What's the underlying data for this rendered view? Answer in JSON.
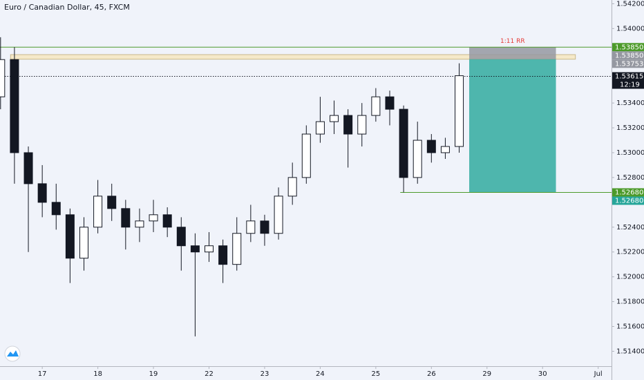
{
  "chart_data": {
    "type": "candlestick",
    "title": "Euro / Canadian Dollar, 45, FXCM",
    "xlim": [
      -0.76,
      10.24
    ],
    "ylim": [
      1.5128,
      1.5423
    ],
    "grid": false,
    "up_color": "#ffffff",
    "down_color": "#131722",
    "xticks": [
      {
        "value": 0,
        "label": "17"
      },
      {
        "value": 1,
        "label": "18"
      },
      {
        "value": 2,
        "label": "19"
      },
      {
        "value": 3,
        "label": "22"
      },
      {
        "value": 4,
        "label": "23"
      },
      {
        "value": 5,
        "label": "24"
      },
      {
        "value": 6,
        "label": "25"
      },
      {
        "value": 7,
        "label": "26"
      },
      {
        "value": 8,
        "label": "29"
      },
      {
        "value": 9,
        "label": "30"
      },
      {
        "value": 10,
        "label": "Jul"
      }
    ],
    "yticks": [
      {
        "value": 1.542,
        "label": "1.54200"
      },
      {
        "value": 1.54,
        "label": "1.54000"
      },
      {
        "value": 1.534,
        "label": "1.53400"
      },
      {
        "value": 1.532,
        "label": "1.53200"
      },
      {
        "value": 1.53,
        "label": "1.53000"
      },
      {
        "value": 1.528,
        "label": "1.52800"
      },
      {
        "value": 1.524,
        "label": "1.52400"
      },
      {
        "value": 1.522,
        "label": "1.52200"
      },
      {
        "value": 1.52,
        "label": "1.52000"
      },
      {
        "value": 1.518,
        "label": "1.51800"
      },
      {
        "value": 1.516,
        "label": "1.51600"
      },
      {
        "value": 1.514,
        "label": "1.51400"
      }
    ],
    "x": [
      -0.75,
      -0.5,
      -0.25,
      0,
      0.25,
      0.5,
      0.75,
      1,
      1.25,
      1.5,
      1.75,
      2,
      2.25,
      2.5,
      2.75,
      3,
      3.25,
      3.5,
      3.75,
      4,
      4.25,
      4.5,
      4.75,
      5,
      5.25,
      5.5,
      5.75,
      6,
      6.25,
      6.5,
      6.75,
      7,
      7.25,
      7.5
    ],
    "open": [
      1.5345,
      1.5375,
      1.53,
      1.5275,
      1.526,
      1.525,
      1.5215,
      1.524,
      1.5265,
      1.5255,
      1.524,
      1.5245,
      1.525,
      1.524,
      1.5225,
      1.522,
      1.5225,
      1.521,
      1.5235,
      1.5245,
      1.5235,
      1.5265,
      1.528,
      1.5315,
      1.5325,
      1.533,
      1.5315,
      1.533,
      1.5345,
      1.5335,
      1.528,
      1.531,
      1.53,
      1.5305
    ],
    "high": [
      1.5393,
      1.5385,
      1.5305,
      1.529,
      1.5275,
      1.5255,
      1.5248,
      1.5278,
      1.5275,
      1.5262,
      1.5255,
      1.5262,
      1.5256,
      1.5248,
      1.5235,
      1.5236,
      1.523,
      1.5248,
      1.5258,
      1.525,
      1.5272,
      1.5292,
      1.5322,
      1.5345,
      1.5342,
      1.5335,
      1.534,
      1.5352,
      1.535,
      1.5338,
      1.5325,
      1.5315,
      1.5312,
      1.5372
    ],
    "low": [
      1.5335,
      1.5275,
      1.522,
      1.5248,
      1.5238,
      1.5195,
      1.5205,
      1.5235,
      1.5245,
      1.5222,
      1.5228,
      1.5236,
      1.5232,
      1.5205,
      1.5152,
      1.5212,
      1.5195,
      1.5205,
      1.5228,
      1.5225,
      1.523,
      1.5258,
      1.5275,
      1.5308,
      1.5315,
      1.5288,
      1.5305,
      1.5325,
      1.5322,
      1.5268,
      1.5275,
      1.5292,
      1.5295,
      1.53
    ],
    "close": [
      1.5375,
      1.53,
      1.5275,
      1.526,
      1.525,
      1.5215,
      1.524,
      1.5265,
      1.5255,
      1.524,
      1.5245,
      1.525,
      1.524,
      1.5225,
      1.522,
      1.5225,
      1.521,
      1.5235,
      1.5245,
      1.5235,
      1.5265,
      1.528,
      1.5315,
      1.5325,
      1.533,
      1.5315,
      1.533,
      1.5345,
      1.5335,
      1.528,
      1.531,
      1.53,
      1.5305,
      1.5362
    ],
    "zone": {
      "ylim": [
        1.53753,
        1.5379
      ],
      "xlim": [
        -0.57,
        9.59
      ],
      "color": "#f5e9c9"
    },
    "levels": [
      {
        "value": 1.5385,
        "color": "#4c9a2a",
        "xlim": [
          -0.76,
          10.24
        ],
        "style": "solid"
      },
      {
        "value": 1.53615,
        "color": "#131722",
        "xlim": [
          -0.76,
          10.24
        ],
        "style": "dotted"
      },
      {
        "value": 1.5268,
        "color": "#4c9a2a",
        "xlim": [
          6.44,
          10.24
        ],
        "style": "solid"
      }
    ],
    "position": {
      "xlim": [
        7.68,
        9.24
      ],
      "stop": 1.5385,
      "entry": 1.53753,
      "target": 1.5268,
      "stop_color": "#9598a1",
      "target_color": "#26a69a",
      "label": "1:11 RR",
      "label_color": "#e53935"
    },
    "price_labels": [
      {
        "value": 1.5385,
        "label": "1.53850",
        "color": "#4c9a2a"
      },
      {
        "value": 1.5385,
        "label": "1.53850",
        "color": "#9598a1"
      },
      {
        "value": 1.53753,
        "label": "1.53753",
        "color": "#9598a1"
      },
      {
        "value": 1.53615,
        "label": "1.53615",
        "color": "#131722"
      },
      {
        "value": 1.5268,
        "label": "1.52680",
        "color": "#4c9a2a"
      },
      {
        "value": 1.5268,
        "label": "1.52680",
        "color": "#26a69a"
      }
    ],
    "countdown": "12:19"
  }
}
